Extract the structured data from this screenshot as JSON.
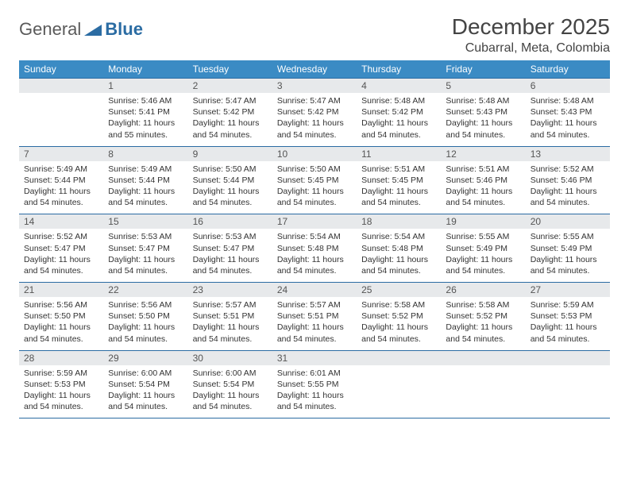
{
  "brand": {
    "part1": "General",
    "part2": "Blue"
  },
  "title": "December 2025",
  "location": "Cubarral, Meta, Colombia",
  "colors": {
    "header_bg": "#3b8bc4",
    "header_text": "#ffffff",
    "daynum_bg": "#e7e9eb",
    "rule": "#2b6ca3",
    "brand_gray": "#5a5a5a",
    "brand_blue": "#2b6ca3",
    "body_bg": "#ffffff",
    "text": "#333333"
  },
  "dayHeaders": [
    "Sunday",
    "Monday",
    "Tuesday",
    "Wednesday",
    "Thursday",
    "Friday",
    "Saturday"
  ],
  "weeks": [
    [
      {
        "n": "",
        "lines": []
      },
      {
        "n": "1",
        "lines": [
          "Sunrise: 5:46 AM",
          "Sunset: 5:41 PM",
          "Daylight: 11 hours",
          "and 55 minutes."
        ]
      },
      {
        "n": "2",
        "lines": [
          "Sunrise: 5:47 AM",
          "Sunset: 5:42 PM",
          "Daylight: 11 hours",
          "and 54 minutes."
        ]
      },
      {
        "n": "3",
        "lines": [
          "Sunrise: 5:47 AM",
          "Sunset: 5:42 PM",
          "Daylight: 11 hours",
          "and 54 minutes."
        ]
      },
      {
        "n": "4",
        "lines": [
          "Sunrise: 5:48 AM",
          "Sunset: 5:42 PM",
          "Daylight: 11 hours",
          "and 54 minutes."
        ]
      },
      {
        "n": "5",
        "lines": [
          "Sunrise: 5:48 AM",
          "Sunset: 5:43 PM",
          "Daylight: 11 hours",
          "and 54 minutes."
        ]
      },
      {
        "n": "6",
        "lines": [
          "Sunrise: 5:48 AM",
          "Sunset: 5:43 PM",
          "Daylight: 11 hours",
          "and 54 minutes."
        ]
      }
    ],
    [
      {
        "n": "7",
        "lines": [
          "Sunrise: 5:49 AM",
          "Sunset: 5:44 PM",
          "Daylight: 11 hours",
          "and 54 minutes."
        ]
      },
      {
        "n": "8",
        "lines": [
          "Sunrise: 5:49 AM",
          "Sunset: 5:44 PM",
          "Daylight: 11 hours",
          "and 54 minutes."
        ]
      },
      {
        "n": "9",
        "lines": [
          "Sunrise: 5:50 AM",
          "Sunset: 5:44 PM",
          "Daylight: 11 hours",
          "and 54 minutes."
        ]
      },
      {
        "n": "10",
        "lines": [
          "Sunrise: 5:50 AM",
          "Sunset: 5:45 PM",
          "Daylight: 11 hours",
          "and 54 minutes."
        ]
      },
      {
        "n": "11",
        "lines": [
          "Sunrise: 5:51 AM",
          "Sunset: 5:45 PM",
          "Daylight: 11 hours",
          "and 54 minutes."
        ]
      },
      {
        "n": "12",
        "lines": [
          "Sunrise: 5:51 AM",
          "Sunset: 5:46 PM",
          "Daylight: 11 hours",
          "and 54 minutes."
        ]
      },
      {
        "n": "13",
        "lines": [
          "Sunrise: 5:52 AM",
          "Sunset: 5:46 PM",
          "Daylight: 11 hours",
          "and 54 minutes."
        ]
      }
    ],
    [
      {
        "n": "14",
        "lines": [
          "Sunrise: 5:52 AM",
          "Sunset: 5:47 PM",
          "Daylight: 11 hours",
          "and 54 minutes."
        ]
      },
      {
        "n": "15",
        "lines": [
          "Sunrise: 5:53 AM",
          "Sunset: 5:47 PM",
          "Daylight: 11 hours",
          "and 54 minutes."
        ]
      },
      {
        "n": "16",
        "lines": [
          "Sunrise: 5:53 AM",
          "Sunset: 5:47 PM",
          "Daylight: 11 hours",
          "and 54 minutes."
        ]
      },
      {
        "n": "17",
        "lines": [
          "Sunrise: 5:54 AM",
          "Sunset: 5:48 PM",
          "Daylight: 11 hours",
          "and 54 minutes."
        ]
      },
      {
        "n": "18",
        "lines": [
          "Sunrise: 5:54 AM",
          "Sunset: 5:48 PM",
          "Daylight: 11 hours",
          "and 54 minutes."
        ]
      },
      {
        "n": "19",
        "lines": [
          "Sunrise: 5:55 AM",
          "Sunset: 5:49 PM",
          "Daylight: 11 hours",
          "and 54 minutes."
        ]
      },
      {
        "n": "20",
        "lines": [
          "Sunrise: 5:55 AM",
          "Sunset: 5:49 PM",
          "Daylight: 11 hours",
          "and 54 minutes."
        ]
      }
    ],
    [
      {
        "n": "21",
        "lines": [
          "Sunrise: 5:56 AM",
          "Sunset: 5:50 PM",
          "Daylight: 11 hours",
          "and 54 minutes."
        ]
      },
      {
        "n": "22",
        "lines": [
          "Sunrise: 5:56 AM",
          "Sunset: 5:50 PM",
          "Daylight: 11 hours",
          "and 54 minutes."
        ]
      },
      {
        "n": "23",
        "lines": [
          "Sunrise: 5:57 AM",
          "Sunset: 5:51 PM",
          "Daylight: 11 hours",
          "and 54 minutes."
        ]
      },
      {
        "n": "24",
        "lines": [
          "Sunrise: 5:57 AM",
          "Sunset: 5:51 PM",
          "Daylight: 11 hours",
          "and 54 minutes."
        ]
      },
      {
        "n": "25",
        "lines": [
          "Sunrise: 5:58 AM",
          "Sunset: 5:52 PM",
          "Daylight: 11 hours",
          "and 54 minutes."
        ]
      },
      {
        "n": "26",
        "lines": [
          "Sunrise: 5:58 AM",
          "Sunset: 5:52 PM",
          "Daylight: 11 hours",
          "and 54 minutes."
        ]
      },
      {
        "n": "27",
        "lines": [
          "Sunrise: 5:59 AM",
          "Sunset: 5:53 PM",
          "Daylight: 11 hours",
          "and 54 minutes."
        ]
      }
    ],
    [
      {
        "n": "28",
        "lines": [
          "Sunrise: 5:59 AM",
          "Sunset: 5:53 PM",
          "Daylight: 11 hours",
          "and 54 minutes."
        ]
      },
      {
        "n": "29",
        "lines": [
          "Sunrise: 6:00 AM",
          "Sunset: 5:54 PM",
          "Daylight: 11 hours",
          "and 54 minutes."
        ]
      },
      {
        "n": "30",
        "lines": [
          "Sunrise: 6:00 AM",
          "Sunset: 5:54 PM",
          "Daylight: 11 hours",
          "and 54 minutes."
        ]
      },
      {
        "n": "31",
        "lines": [
          "Sunrise: 6:01 AM",
          "Sunset: 5:55 PM",
          "Daylight: 11 hours",
          "and 54 minutes."
        ]
      },
      {
        "n": "",
        "lines": []
      },
      {
        "n": "",
        "lines": []
      },
      {
        "n": "",
        "lines": []
      }
    ]
  ]
}
